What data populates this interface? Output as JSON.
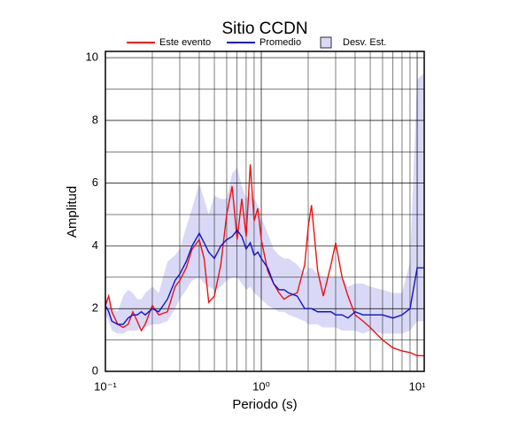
{
  "chart_data": {
    "type": "line",
    "title": "Sitio CCDN",
    "xlabel": "Periodo (s)",
    "ylabel": "Amplitud",
    "log_x": true,
    "grid": true,
    "legend": "top",
    "xlim": [
      0.1,
      11.1
    ],
    "ylim": [
      0,
      10.2
    ],
    "xticks": [
      {
        "value": 0.1,
        "label": "10⁻¹"
      },
      {
        "value": 1,
        "label": "10⁰"
      },
      {
        "value": 10,
        "label": "10¹"
      }
    ],
    "xminorticks": [
      0.2,
      0.3,
      0.4,
      0.5,
      0.6,
      0.7,
      0.8,
      0.9,
      2,
      3,
      4,
      5,
      6,
      7,
      8,
      9
    ],
    "yticks": [
      0,
      2,
      4,
      6,
      8,
      10
    ],
    "yminorticks": [
      1,
      3,
      5,
      7,
      9
    ],
    "x": [
      0.1,
      0.105,
      0.11,
      0.12,
      0.13,
      0.14,
      0.15,
      0.16,
      0.17,
      0.18,
      0.2,
      0.22,
      0.25,
      0.28,
      0.3,
      0.33,
      0.36,
      0.4,
      0.43,
      0.46,
      0.5,
      0.55,
      0.6,
      0.65,
      0.7,
      0.75,
      0.8,
      0.85,
      0.9,
      0.95,
      1.0,
      1.1,
      1.2,
      1.3,
      1.4,
      1.5,
      1.7,
      1.9,
      2.0,
      2.1,
      2.3,
      2.5,
      2.8,
      3.0,
      3.3,
      3.6,
      4.0,
      4.5,
      5.0,
      6.0,
      7.0,
      8.0,
      9.0,
      10.0,
      11.0
    ],
    "band": {
      "name": "Desv. Est.",
      "color": "#d9d9f7",
      "upper": [
        2.4,
        2.2,
        2.0,
        1.9,
        2.4,
        2.6,
        2.5,
        2.3,
        2.3,
        2.5,
        2.7,
        2.5,
        3.5,
        3.7,
        3.9,
        4.6,
        5.2,
        6.0,
        5.5,
        5.0,
        5.6,
        5.5,
        5.5,
        6.3,
        6.5,
        5.9,
        5.5,
        5.7,
        5.5,
        5.3,
        4.9,
        4.4,
        3.9,
        3.7,
        3.6,
        3.6,
        3.4,
        3.1,
        3.3,
        3.3,
        3.1,
        3.0,
        3.0,
        3.0,
        3.0,
        2.7,
        2.8,
        2.8,
        2.7,
        2.6,
        2.5,
        2.5,
        3.5,
        9.3,
        9.5
      ],
      "lower": [
        1.8,
        1.6,
        1.3,
        1.2,
        1.2,
        1.3,
        1.3,
        1.3,
        1.4,
        1.4,
        1.5,
        1.5,
        1.6,
        2.0,
        2.3,
        2.6,
        2.9,
        3.0,
        2.8,
        2.7,
        2.6,
        2.7,
        2.9,
        3.0,
        3.0,
        2.8,
        2.6,
        2.7,
        2.5,
        2.4,
        2.3,
        2.1,
        2.0,
        1.9,
        1.9,
        1.8,
        1.7,
        1.6,
        1.5,
        1.5,
        1.5,
        1.4,
        1.4,
        1.4,
        1.3,
        1.3,
        1.3,
        1.2,
        1.3,
        1.2,
        1.2,
        1.2,
        1.3,
        1.6,
        1.6
      ]
    },
    "series": [
      {
        "name": "Este evento",
        "color": "#ee1111",
        "values": [
          2.1,
          2.4,
          1.9,
          1.5,
          1.4,
          1.5,
          1.9,
          1.6,
          1.3,
          1.5,
          2.1,
          1.8,
          1.9,
          2.7,
          2.9,
          3.3,
          3.9,
          4.2,
          3.6,
          2.2,
          2.4,
          3.4,
          5.0,
          5.9,
          4.2,
          5.5,
          4.3,
          6.6,
          4.8,
          5.2,
          4.2,
          3.2,
          2.8,
          2.5,
          2.3,
          2.4,
          2.5,
          3.4,
          4.6,
          5.3,
          3.2,
          2.4,
          3.4,
          4.1,
          3.0,
          2.4,
          1.8,
          1.6,
          1.4,
          1.0,
          0.75,
          0.65,
          0.6,
          0.5,
          0.5
        ]
      },
      {
        "name": "Promedio",
        "color": "#1111cc",
        "values": [
          2.1,
          1.9,
          1.6,
          1.5,
          1.5,
          1.7,
          1.8,
          1.8,
          1.9,
          1.8,
          2.0,
          1.9,
          2.3,
          2.9,
          3.1,
          3.5,
          4.0,
          4.4,
          4.1,
          3.8,
          3.6,
          4.0,
          4.2,
          4.3,
          4.5,
          4.3,
          3.9,
          4.1,
          3.7,
          3.8,
          3.6,
          3.3,
          2.8,
          2.6,
          2.6,
          2.5,
          2.4,
          2.0,
          2.0,
          2.0,
          1.9,
          1.9,
          1.9,
          1.8,
          1.8,
          1.7,
          1.9,
          1.8,
          1.8,
          1.8,
          1.7,
          1.8,
          2.0,
          3.3,
          3.3
        ]
      }
    ]
  }
}
